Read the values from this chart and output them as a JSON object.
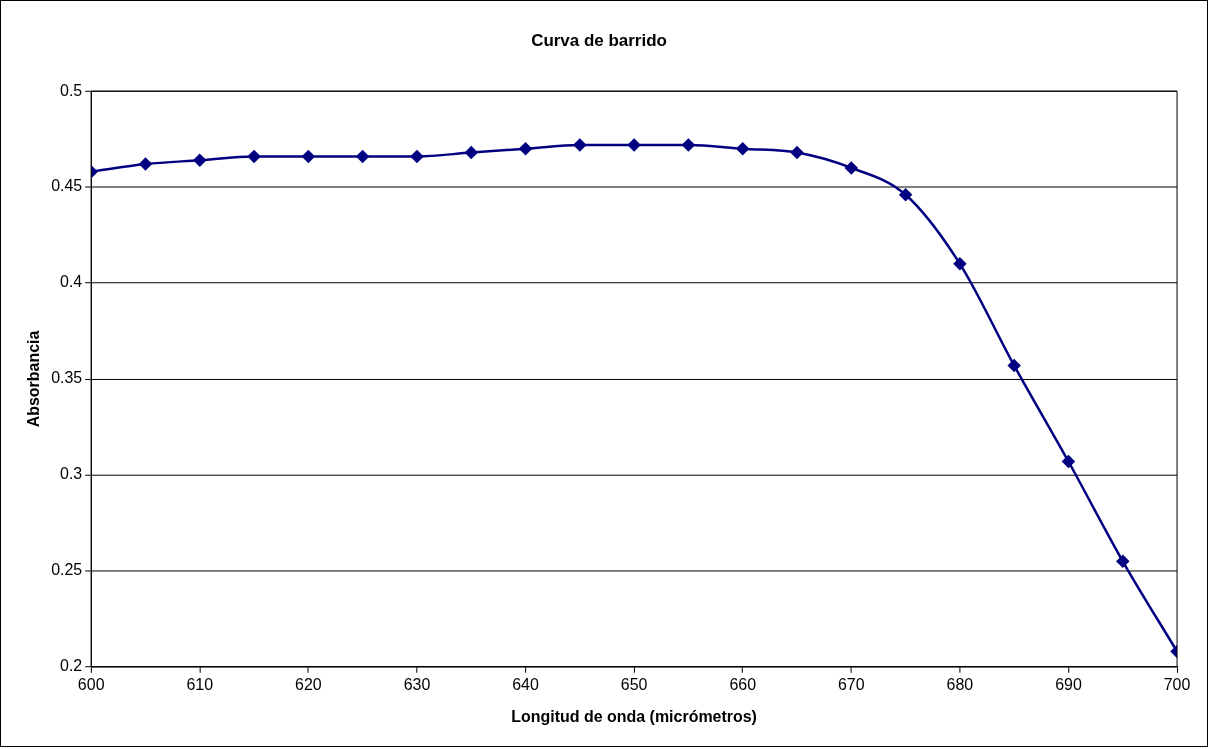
{
  "chart_data": {
    "type": "line",
    "title": "Curva de barrido",
    "xlabel": "Longitud de onda (micrómetros)",
    "ylabel": "Absorbancia",
    "x": [
      600,
      605,
      610,
      615,
      620,
      625,
      630,
      635,
      640,
      645,
      650,
      655,
      660,
      665,
      670,
      675,
      680,
      685,
      690,
      695,
      700
    ],
    "series": [
      {
        "color": "#000080",
        "values": [
          0.458,
          0.462,
          0.464,
          0.466,
          0.466,
          0.466,
          0.466,
          0.468,
          0.47,
          0.472,
          0.472,
          0.472,
          0.47,
          0.468,
          0.46,
          0.446,
          0.41,
          0.357,
          0.307,
          0.255,
          0.208
        ]
      }
    ],
    "xlim": [
      600,
      700
    ],
    "xticks": [
      600,
      610,
      620,
      630,
      640,
      650,
      660,
      670,
      680,
      690,
      700
    ],
    "ylim": [
      0.2,
      0.5
    ],
    "yticks": [
      0.2,
      0.25,
      0.3,
      0.35,
      0.4,
      0.45,
      0.5
    ],
    "grid": "y",
    "legend": false,
    "marker": "diamond",
    "line_style": "solid"
  }
}
